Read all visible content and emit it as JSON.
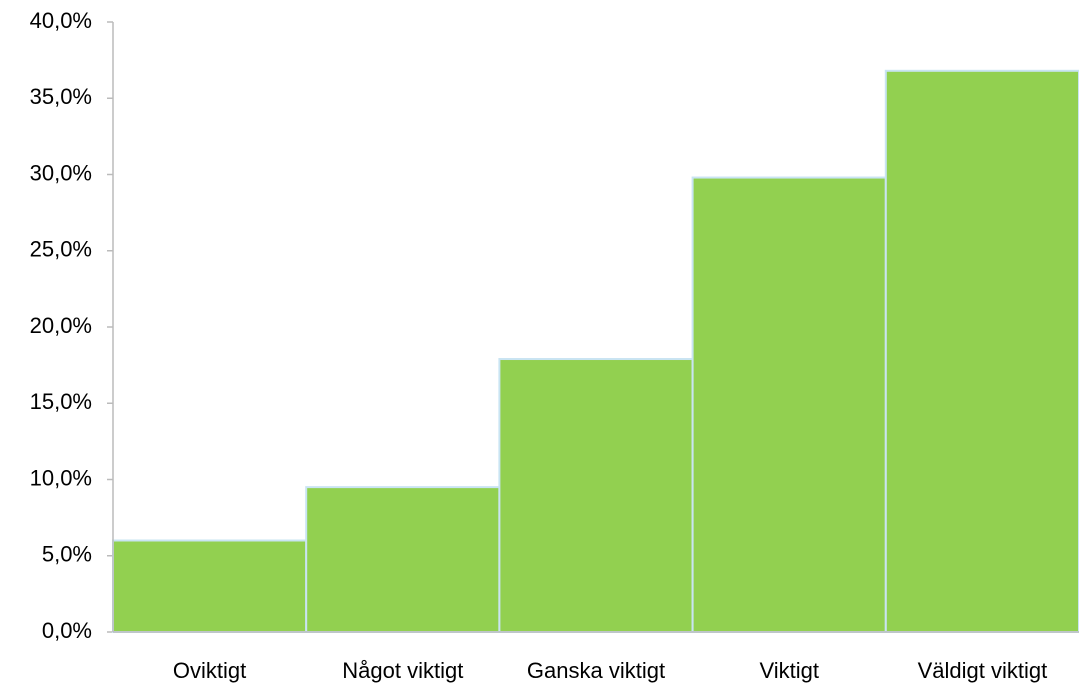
{
  "chart_data": {
    "type": "bar",
    "categories": [
      "Oviktigt",
      "Något viktigt",
      "Ganska viktigt",
      "Viktigt",
      "Väldigt viktigt"
    ],
    "values": [
      6.0,
      9.5,
      17.9,
      29.8,
      36.8
    ],
    "color": "#92d050",
    "ylim": [
      0,
      40
    ],
    "yticks": [
      {
        "value": 0,
        "label": "0,0%"
      },
      {
        "value": 5,
        "label": "5,0%"
      },
      {
        "value": 10,
        "label": "10,0%"
      },
      {
        "value": 15,
        "label": "15,0%"
      },
      {
        "value": 20,
        "label": "20,0%"
      },
      {
        "value": 25,
        "label": "25,0%"
      },
      {
        "value": 30,
        "label": "30,0%"
      },
      {
        "value": 35,
        "label": "35,0%"
      },
      {
        "value": 40,
        "label": "40,0%"
      }
    ],
    "grid": false
  }
}
